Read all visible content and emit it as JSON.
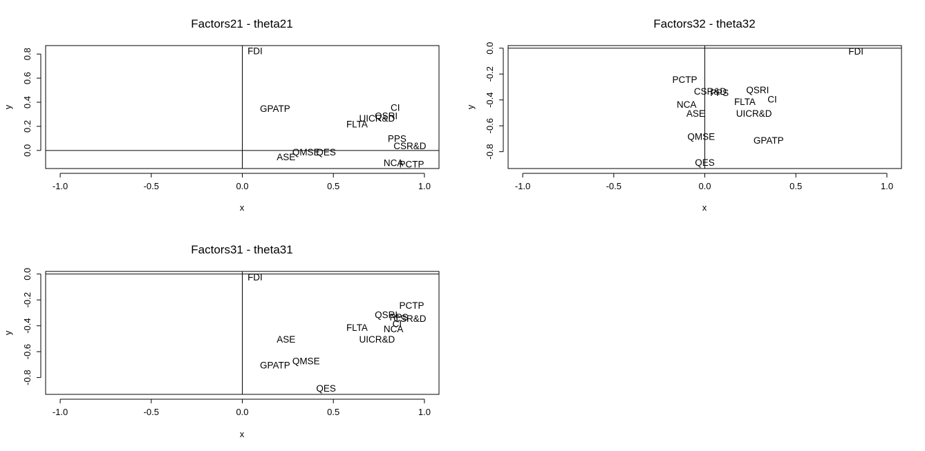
{
  "chart_data": [
    {
      "type": "scatter",
      "title": "Factors21 - theta21",
      "xlabel": "x",
      "ylabel": "y",
      "xlim": [
        -1.08,
        1.08
      ],
      "ylim": [
        -0.15,
        0.87
      ],
      "xticks": [
        "-1.0",
        "-0.5",
        "0.0",
        "0.5",
        "1.0"
      ],
      "xtick_values": [
        -1.0,
        -0.5,
        0.0,
        0.5,
        1.0
      ],
      "yticks": [
        "0.0",
        "0.2",
        "0.4",
        "0.6",
        "0.8"
      ],
      "ytick_values": [
        0.0,
        0.2,
        0.4,
        0.6,
        0.8
      ],
      "reference_lines": {
        "h": 0,
        "v": 0
      },
      "points": [
        {
          "label": "FDI",
          "x": 0.07,
          "y": 0.82
        },
        {
          "label": "GPATP",
          "x": 0.18,
          "y": 0.34
        },
        {
          "label": "CI",
          "x": 0.84,
          "y": 0.35
        },
        {
          "label": "QSRI",
          "x": 0.79,
          "y": 0.28
        },
        {
          "label": "UICR&D",
          "x": 0.74,
          "y": 0.26
        },
        {
          "label": "FLTA",
          "x": 0.63,
          "y": 0.21
        },
        {
          "label": "PPS",
          "x": 0.85,
          "y": 0.09
        },
        {
          "label": "CSR&D",
          "x": 0.92,
          "y": 0.03
        },
        {
          "label": "QES",
          "x": 0.46,
          "y": -0.02
        },
        {
          "label": "QMSE",
          "x": 0.35,
          "y": -0.02
        },
        {
          "label": "ASE",
          "x": 0.24,
          "y": -0.06
        },
        {
          "label": "NCA",
          "x": 0.83,
          "y": -0.11
        },
        {
          "label": "PCTP",
          "x": 0.93,
          "y": -0.12
        }
      ]
    },
    {
      "type": "scatter",
      "title": "Factors32 - theta32",
      "xlabel": "x",
      "ylabel": "y",
      "xlim": [
        -1.08,
        1.08
      ],
      "ylim": [
        -0.93,
        0.02
      ],
      "xticks": [
        "-1.0",
        "-0.5",
        "0.0",
        "0.5",
        "1.0"
      ],
      "xtick_values": [
        -1.0,
        -0.5,
        0.0,
        0.5,
        1.0
      ],
      "yticks": [
        "0.0",
        "-0.2",
        "-0.4",
        "-0.6",
        "-0.8"
      ],
      "ytick_values": [
        0.0,
        -0.2,
        -0.4,
        -0.6,
        -0.8
      ],
      "reference_lines": {
        "h": 0,
        "v": 0
      },
      "points": [
        {
          "label": "FDI",
          "x": 0.83,
          "y": -0.03
        },
        {
          "label": "PCTP",
          "x": -0.11,
          "y": -0.25
        },
        {
          "label": "CSR&D",
          "x": 0.03,
          "y": -0.34
        },
        {
          "label": "PPS",
          "x": 0.08,
          "y": -0.35
        },
        {
          "label": "QSRI",
          "x": 0.29,
          "y": -0.33
        },
        {
          "label": "CI",
          "x": 0.37,
          "y": -0.4
        },
        {
          "label": "FLTA",
          "x": 0.22,
          "y": -0.42
        },
        {
          "label": "NCA",
          "x": -0.1,
          "y": -0.44
        },
        {
          "label": "ASE",
          "x": -0.05,
          "y": -0.51
        },
        {
          "label": "UICR&D",
          "x": 0.27,
          "y": -0.51
        },
        {
          "label": "QMSE",
          "x": -0.02,
          "y": -0.69
        },
        {
          "label": "GPATP",
          "x": 0.35,
          "y": -0.72
        },
        {
          "label": "QES",
          "x": 0.0,
          "y": -0.89
        }
      ]
    },
    {
      "type": "scatter",
      "title": "Factors31 - theta31",
      "xlabel": "x",
      "ylabel": "y",
      "xlim": [
        -1.08,
        1.08
      ],
      "ylim": [
        -0.93,
        0.02
      ],
      "xticks": [
        "-1.0",
        "-0.5",
        "0.0",
        "0.5",
        "1.0"
      ],
      "xtick_values": [
        -1.0,
        -0.5,
        0.0,
        0.5,
        1.0
      ],
      "yticks": [
        "0.0",
        "-0.2",
        "-0.4",
        "-0.6",
        "-0.8"
      ],
      "ytick_values": [
        0.0,
        -0.2,
        -0.4,
        -0.6,
        -0.8
      ],
      "reference_lines": {
        "h": 0,
        "v": 0
      },
      "points": [
        {
          "label": "FDI",
          "x": 0.07,
          "y": -0.03
        },
        {
          "label": "PCTP",
          "x": 0.93,
          "y": -0.25
        },
        {
          "label": "QSRI",
          "x": 0.79,
          "y": -0.32
        },
        {
          "label": "PPS",
          "x": 0.86,
          "y": -0.34
        },
        {
          "label": "CSR&D",
          "x": 0.92,
          "y": -0.35
        },
        {
          "label": "CI",
          "x": 0.85,
          "y": -0.39
        },
        {
          "label": "FLTA",
          "x": 0.63,
          "y": -0.42
        },
        {
          "label": "NCA",
          "x": 0.83,
          "y": -0.43
        },
        {
          "label": "ASE",
          "x": 0.24,
          "y": -0.51
        },
        {
          "label": "UICR&D",
          "x": 0.74,
          "y": -0.51
        },
        {
          "label": "QMSE",
          "x": 0.35,
          "y": -0.68
        },
        {
          "label": "GPATP",
          "x": 0.18,
          "y": -0.71
        },
        {
          "label": "QES",
          "x": 0.46,
          "y": -0.89
        }
      ]
    }
  ]
}
